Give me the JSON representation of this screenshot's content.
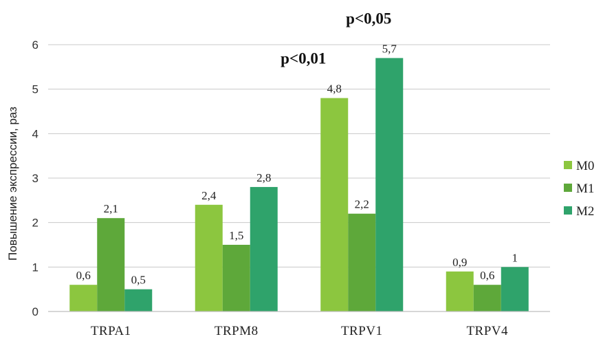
{
  "chart_data": {
    "type": "bar",
    "categories": [
      "TRPA1",
      "TRPM8",
      "TRPV1",
      "TRPV4"
    ],
    "series": [
      {
        "name": "M0",
        "color": "#8cc63f",
        "values": [
          0.6,
          2.4,
          4.8,
          0.9
        ],
        "labels": [
          "0,6",
          "2,4",
          "4,8",
          "0,9"
        ]
      },
      {
        "name": "M1",
        "color": "#5ea83a",
        "values": [
          2.1,
          1.5,
          2.2,
          0.6
        ],
        "labels": [
          "2,1",
          "1,5",
          "2,2",
          "0,6"
        ]
      },
      {
        "name": "M2",
        "color": "#2fa36b",
        "values": [
          0.5,
          2.8,
          5.7,
          1.0
        ],
        "labels": [
          "0,5",
          "2,8",
          "5,7",
          "1"
        ]
      }
    ],
    "ylabel": "Повышение экспрессии, раз",
    "xlabel": "",
    "ylim": [
      0,
      6
    ],
    "yticks": [
      0,
      1,
      2,
      3,
      4,
      5,
      6
    ],
    "grid": true,
    "legend": "right",
    "annotations": [
      {
        "text": "p<0,01",
        "category": "TRPV1",
        "series": "M0"
      },
      {
        "text": "p<0,05",
        "category": "TRPV1",
        "series": "M2"
      }
    ]
  }
}
